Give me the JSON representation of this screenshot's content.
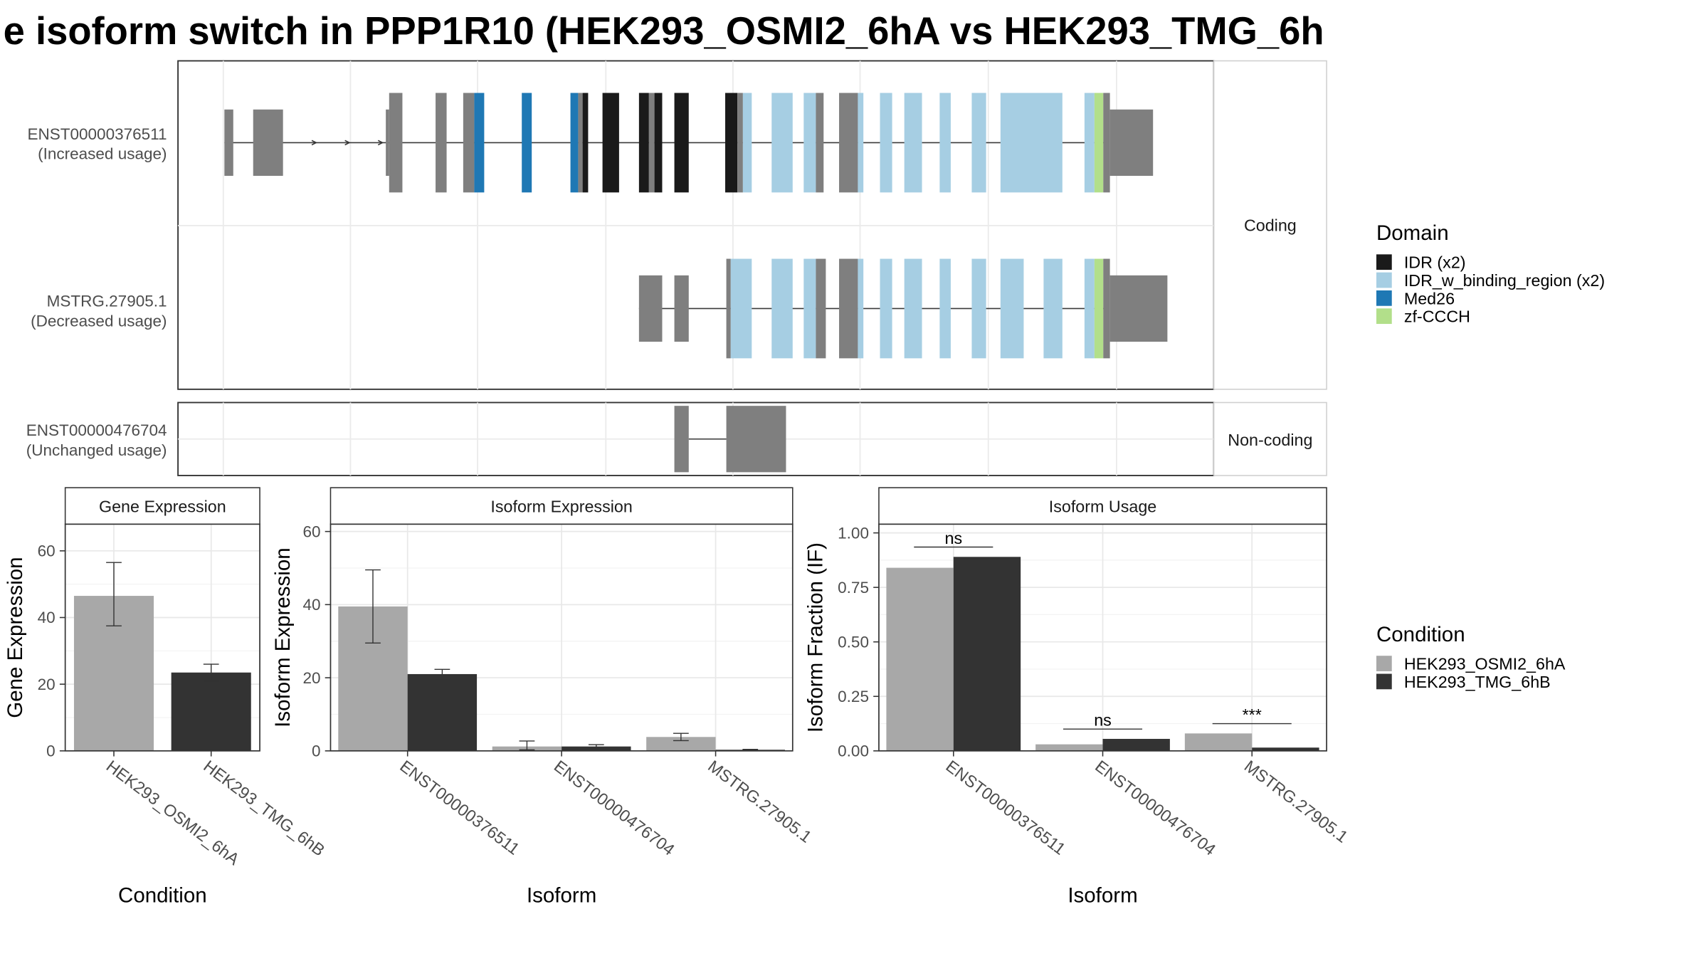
{
  "title": "e isoform switch in PPP1R10 (HEK293_OSMI2_6hA vs HEK293_TMG_6h",
  "colors": {
    "IDR": "#1a1a1a",
    "IDR_w_binding_region": "#a6cee3",
    "Med26": "#1f78b4",
    "zf-CCCH": "#b2df8a",
    "exon": "#7f7f7f",
    "cond1": "#a8a8a8",
    "cond2": "#333333"
  },
  "structure": {
    "facets": [
      "Coding",
      "Non-coding"
    ],
    "isoforms": [
      {
        "id": "ENST00000376511",
        "usage": "(Increased usage)"
      },
      {
        "id": "MSTRG.27905.1",
        "usage": "(Decreased usage)"
      },
      {
        "id": "ENST00000476704",
        "usage": "(Unchanged usage)"
      }
    ]
  },
  "legends": {
    "domain": {
      "title": "Domain",
      "items": [
        {
          "label": "IDR (x2)",
          "color_key": "IDR"
        },
        {
          "label": "IDR_w_binding_region (x2)",
          "color_key": "IDR_w_binding_region"
        },
        {
          "label": "Med26",
          "color_key": "Med26"
        },
        {
          "label": "zf-CCCH",
          "color_key": "zf-CCCH"
        }
      ]
    },
    "condition": {
      "title": "Condition",
      "items": [
        {
          "label": "HEK293_OSMI2_6hA",
          "color_key": "cond1"
        },
        {
          "label": "HEK293_TMG_6hB",
          "color_key": "cond2"
        }
      ]
    }
  },
  "chart_data": [
    {
      "type": "bar",
      "title": "Gene Expression",
      "xlabel": "Condition",
      "ylabel": "Gene Expression",
      "ylim": [
        0,
        68
      ],
      "yticks": [
        0,
        20,
        40,
        60
      ],
      "categories": [
        "HEK293_OSMI2_6hA",
        "HEK293_TMG_6hB"
      ],
      "values": [
        46.5,
        23.5
      ],
      "errors": [
        [
          37.5,
          56.5
        ],
        [
          21.0,
          26.0
        ]
      ]
    },
    {
      "type": "bar",
      "title": "Isoform Expression",
      "xlabel": "Isoform",
      "ylabel": "Isoform Expression",
      "ylim": [
        0,
        62
      ],
      "yticks": [
        0,
        20,
        40,
        60
      ],
      "categories": [
        "ENST00000376511",
        "ENST00000476704",
        "MSTRG.27905.1"
      ],
      "series": [
        {
          "name": "HEK293_OSMI2_6hA",
          "values": [
            39.5,
            1.2,
            3.8
          ],
          "errors": [
            [
              29.5,
              49.5
            ],
            [
              0.3,
              2.7
            ],
            [
              2.8,
              4.8
            ]
          ]
        },
        {
          "name": "HEK293_TMG_6hB",
          "values": [
            21.0,
            1.2,
            0.3
          ],
          "errors": [
            [
              19.7,
              22.3
            ],
            [
              0.7,
              1.7
            ],
            [
              0.2,
              0.4
            ]
          ]
        }
      ]
    },
    {
      "type": "bar",
      "title": "Isoform Usage",
      "xlabel": "Isoform",
      "ylabel": "Isoform Fraction (IF)",
      "ylim": [
        0,
        1.04
      ],
      "yticks": [
        "0.00",
        "0.25",
        "0.50",
        "0.75",
        "1.00"
      ],
      "categories": [
        "ENST00000376511",
        "ENST00000476704",
        "MSTRG.27905.1"
      ],
      "series": [
        {
          "name": "HEK293_OSMI2_6hA",
          "values": [
            0.84,
            0.03,
            0.08
          ]
        },
        {
          "name": "HEK293_TMG_6hB",
          "values": [
            0.89,
            0.055,
            0.015
          ]
        }
      ],
      "significance": [
        "ns",
        "ns",
        "***"
      ]
    }
  ]
}
